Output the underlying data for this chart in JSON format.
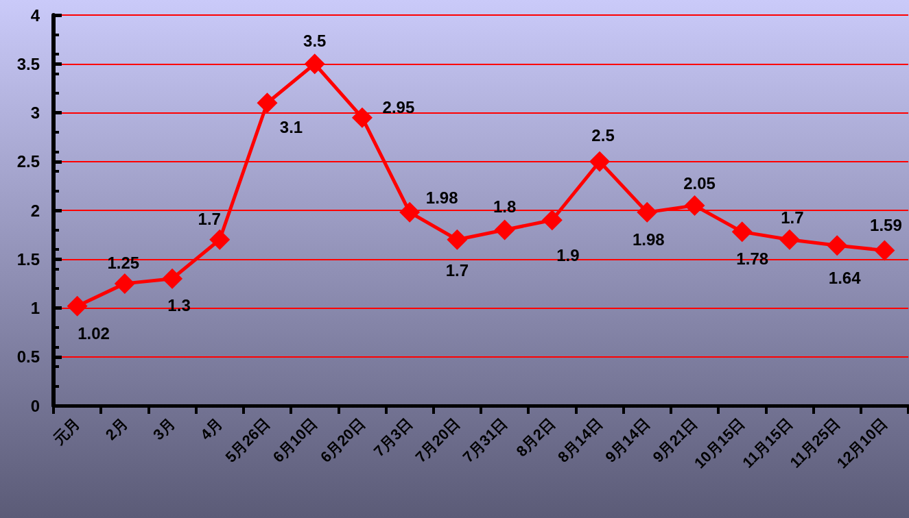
{
  "chart_data": {
    "type": "line",
    "categories": [
      "元月",
      "2月",
      "3月",
      "4月",
      "5月26日",
      "6月10日",
      "6月20日",
      "7月3日",
      "7月20日",
      "7月31日",
      "8月2日",
      "8月14日",
      "9月14日",
      "9月21日",
      "10月15日",
      "11月15日",
      "11月25日",
      "12月10日"
    ],
    "series": [
      {
        "color": "#ff0000",
        "values": [
          1.02,
          1.25,
          1.3,
          1.7,
          3.1,
          3.5,
          2.95,
          1.98,
          1.7,
          1.8,
          1.9,
          2.5,
          1.98,
          2.05,
          1.78,
          1.7,
          1.64,
          1.59
        ]
      }
    ],
    "ylim": [
      0,
      4
    ],
    "yticks": [
      0,
      0.5,
      1,
      1.5,
      2,
      2.5,
      3,
      3.5,
      4
    ],
    "grid": "y",
    "marker": "diamond",
    "line_style": "solid",
    "data_labels": true
  }
}
